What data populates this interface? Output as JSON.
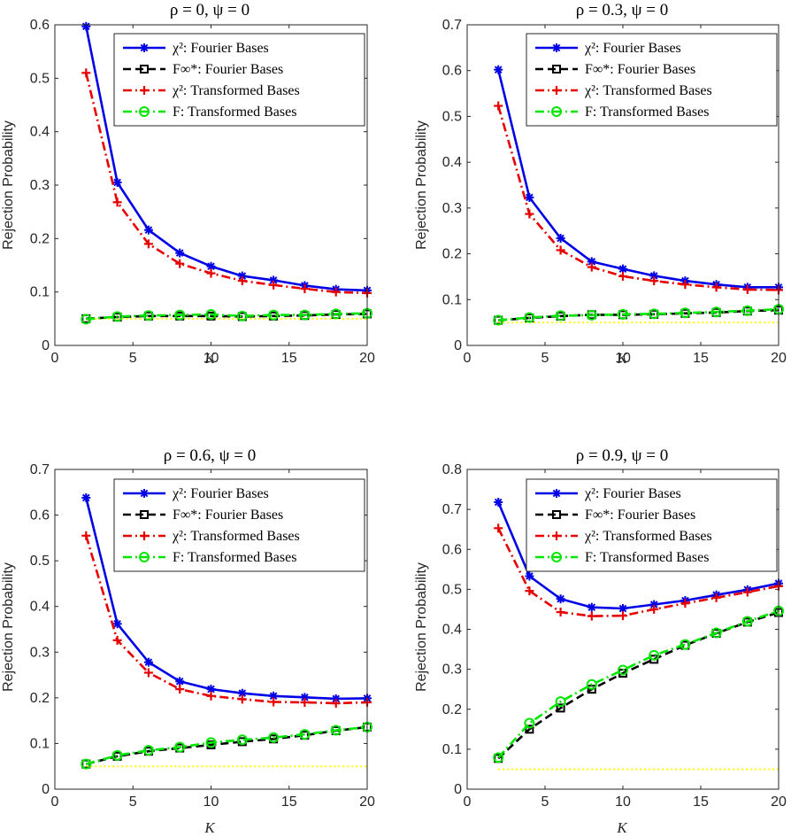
{
  "chart_data": [
    {
      "type": "line",
      "title": "ρ = 0, ψ = 0",
      "xlabel": "K",
      "ylabel": "Rejection Probability",
      "xlim": [
        0,
        20
      ],
      "ylim": [
        0,
        0.6
      ],
      "xticks": [
        0,
        5,
        10,
        15,
        20
      ],
      "yticks": [
        0,
        0.1,
        0.2,
        0.3,
        0.4,
        0.5,
        0.6
      ],
      "legend_position": "top-right",
      "x": [
        2,
        4,
        6,
        8,
        10,
        12,
        14,
        16,
        18,
        20
      ],
      "series": [
        {
          "name": "χ²: Fourier Bases",
          "values": [
            0.597,
            0.305,
            0.216,
            0.173,
            0.148,
            0.13,
            0.122,
            0.112,
            0.105,
            0.103
          ]
        },
        {
          "name": "F∞*: Fourier Bases",
          "values": [
            0.05,
            0.053,
            0.055,
            0.055,
            0.055,
            0.054,
            0.055,
            0.056,
            0.058,
            0.059
          ]
        },
        {
          "name": "χ²: Transformed Bases",
          "values": [
            0.51,
            0.268,
            0.19,
            0.153,
            0.135,
            0.121,
            0.113,
            0.106,
            0.1,
            0.098
          ]
        },
        {
          "name": "F: Transformed Bases",
          "values": [
            0.049,
            0.054,
            0.056,
            0.057,
            0.058,
            0.055,
            0.057,
            0.057,
            0.059,
            0.06
          ]
        }
      ],
      "reference_line": 0.05
    },
    {
      "type": "line",
      "title": "ρ = 0.3, ψ = 0",
      "xlabel": "K",
      "ylabel": "Rejection Probability",
      "xlim": [
        0,
        20
      ],
      "ylim": [
        0,
        0.7
      ],
      "xticks": [
        0,
        5,
        10,
        15,
        20
      ],
      "yticks": [
        0,
        0.1,
        0.2,
        0.3,
        0.4,
        0.5,
        0.6,
        0.7
      ],
      "legend_position": "top-right",
      "x": [
        2,
        4,
        6,
        8,
        10,
        12,
        14,
        16,
        18,
        20
      ],
      "series": [
        {
          "name": "χ²: Fourier Bases",
          "values": [
            0.602,
            0.323,
            0.234,
            0.183,
            0.167,
            0.152,
            0.141,
            0.133,
            0.127,
            0.127
          ]
        },
        {
          "name": "F∞*: Fourier Bases",
          "values": [
            0.055,
            0.06,
            0.064,
            0.067,
            0.067,
            0.068,
            0.07,
            0.072,
            0.075,
            0.077
          ]
        },
        {
          "name": "χ²: Transformed Bases",
          "values": [
            0.523,
            0.287,
            0.208,
            0.171,
            0.151,
            0.141,
            0.133,
            0.127,
            0.122,
            0.121
          ]
        },
        {
          "name": "F: Transformed Bases",
          "values": [
            0.055,
            0.061,
            0.065,
            0.066,
            0.068,
            0.069,
            0.071,
            0.073,
            0.076,
            0.079
          ]
        }
      ],
      "reference_line": 0.05
    },
    {
      "type": "line",
      "title": "ρ = 0.6, ψ = 0",
      "xlabel": "K",
      "ylabel": "Rejection Probability",
      "xlim": [
        0,
        20
      ],
      "ylim": [
        0,
        0.7
      ],
      "xticks": [
        0,
        5,
        10,
        15,
        20
      ],
      "yticks": [
        0,
        0.1,
        0.2,
        0.3,
        0.4,
        0.5,
        0.6,
        0.7
      ],
      "legend_position": "top-right",
      "x": [
        2,
        4,
        6,
        8,
        10,
        12,
        14,
        16,
        18,
        20
      ],
      "series": [
        {
          "name": "χ²: Fourier Bases",
          "values": [
            0.638,
            0.362,
            0.278,
            0.236,
            0.219,
            0.21,
            0.204,
            0.201,
            0.198,
            0.199
          ]
        },
        {
          "name": "F∞*: Fourier Bases",
          "values": [
            0.055,
            0.072,
            0.083,
            0.09,
            0.097,
            0.104,
            0.11,
            0.118,
            0.128,
            0.136
          ]
        },
        {
          "name": "χ²: Transformed Bases",
          "values": [
            0.555,
            0.326,
            0.255,
            0.219,
            0.204,
            0.197,
            0.191,
            0.19,
            0.188,
            0.19
          ]
        },
        {
          "name": "F: Transformed Bases",
          "values": [
            0.055,
            0.074,
            0.085,
            0.092,
            0.102,
            0.108,
            0.113,
            0.12,
            0.129,
            0.136
          ]
        }
      ],
      "reference_line": 0.05
    },
    {
      "type": "line",
      "title": "ρ = 0.9, ψ = 0",
      "xlabel": "K",
      "ylabel": "Rejection Probability",
      "xlim": [
        0,
        20
      ],
      "ylim": [
        0,
        0.8
      ],
      "xticks": [
        0,
        5,
        10,
        15,
        20
      ],
      "yticks": [
        0,
        0.1,
        0.2,
        0.3,
        0.4,
        0.5,
        0.6,
        0.7,
        0.8
      ],
      "legend_position": "top-right",
      "x": [
        2,
        4,
        6,
        8,
        10,
        12,
        14,
        16,
        18,
        20
      ],
      "series": [
        {
          "name": "χ²: Fourier Bases",
          "values": [
            0.718,
            0.533,
            0.476,
            0.455,
            0.452,
            0.462,
            0.472,
            0.486,
            0.499,
            0.515
          ]
        },
        {
          "name": "F∞*: Fourier Bases",
          "values": [
            0.077,
            0.15,
            0.203,
            0.25,
            0.29,
            0.325,
            0.36,
            0.39,
            0.418,
            0.442
          ]
        },
        {
          "name": "χ²: Transformed Bases",
          "values": [
            0.653,
            0.496,
            0.443,
            0.433,
            0.434,
            0.45,
            0.465,
            0.479,
            0.493,
            0.508
          ]
        },
        {
          "name": "F: Transformed Bases",
          "values": [
            0.079,
            0.165,
            0.219,
            0.262,
            0.298,
            0.335,
            0.362,
            0.391,
            0.42,
            0.446
          ]
        }
      ],
      "reference_line": 0.05
    }
  ],
  "series_styles": [
    {
      "color": "#0000e6",
      "dash": "solid",
      "marker": "asterisk"
    },
    {
      "color": "#000000",
      "dash": "dashed",
      "marker": "square"
    },
    {
      "color": "#e60000",
      "dash": "dashdot",
      "marker": "plus"
    },
    {
      "color": "#00e600",
      "dash": "dashdot",
      "marker": "circle"
    }
  ],
  "reference_line_color": "#ffff00"
}
